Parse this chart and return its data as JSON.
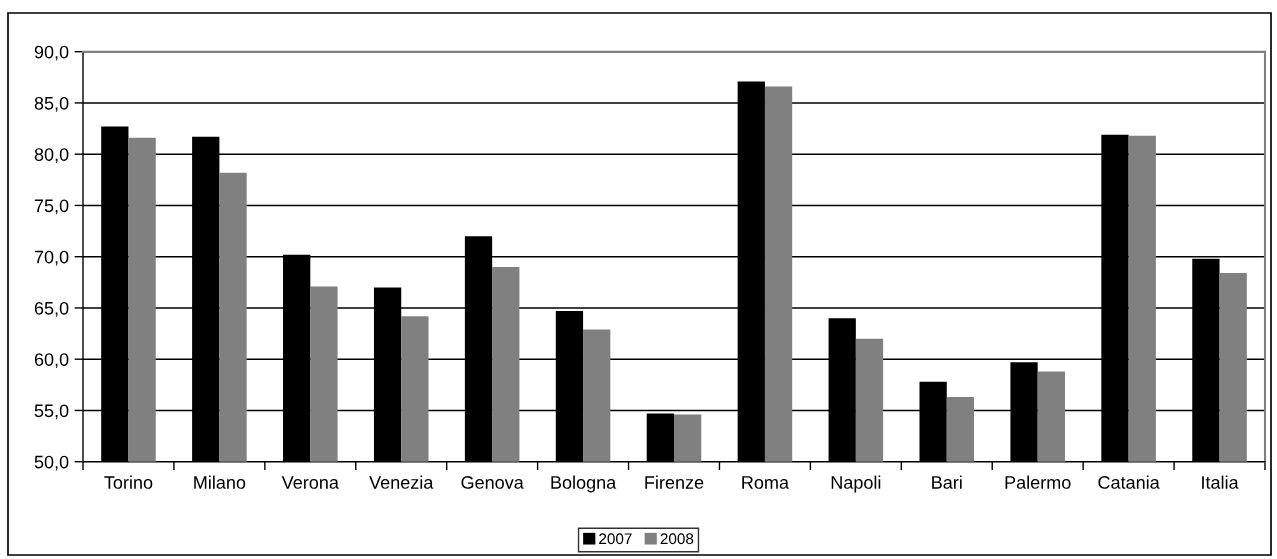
{
  "chart_data": {
    "type": "bar",
    "categories": [
      "Torino",
      "Milano",
      "Verona",
      "Venezia",
      "Genova",
      "Bologna",
      "Firenze",
      "Roma",
      "Napoli",
      "Bari",
      "Palermo",
      "Catania",
      "Italia"
    ],
    "series": [
      {
        "name": "2007",
        "color": "#000000",
        "values": [
          82.7,
          81.7,
          70.2,
          67.0,
          72.0,
          64.7,
          54.7,
          87.1,
          64.0,
          57.8,
          59.7,
          81.9,
          69.8
        ]
      },
      {
        "name": "2008",
        "color": "#808080",
        "values": [
          81.6,
          78.2,
          67.1,
          64.2,
          69.0,
          62.9,
          54.6,
          86.6,
          62.0,
          56.3,
          58.8,
          81.8,
          68.4
        ]
      }
    ],
    "ylim": [
      50,
      90
    ],
    "yticks": [
      {
        "value": 50,
        "label": "50,0"
      },
      {
        "value": 55,
        "label": "55,0"
      },
      {
        "value": 60,
        "label": "60,0"
      },
      {
        "value": 65,
        "label": "65,0"
      },
      {
        "value": 70,
        "label": "70,0"
      },
      {
        "value": 75,
        "label": "75,0"
      },
      {
        "value": 80,
        "label": "80,0"
      },
      {
        "value": 85,
        "label": "85,0"
      },
      {
        "value": 90,
        "label": "90,0"
      }
    ],
    "grid": "y",
    "legend": "bottom"
  }
}
